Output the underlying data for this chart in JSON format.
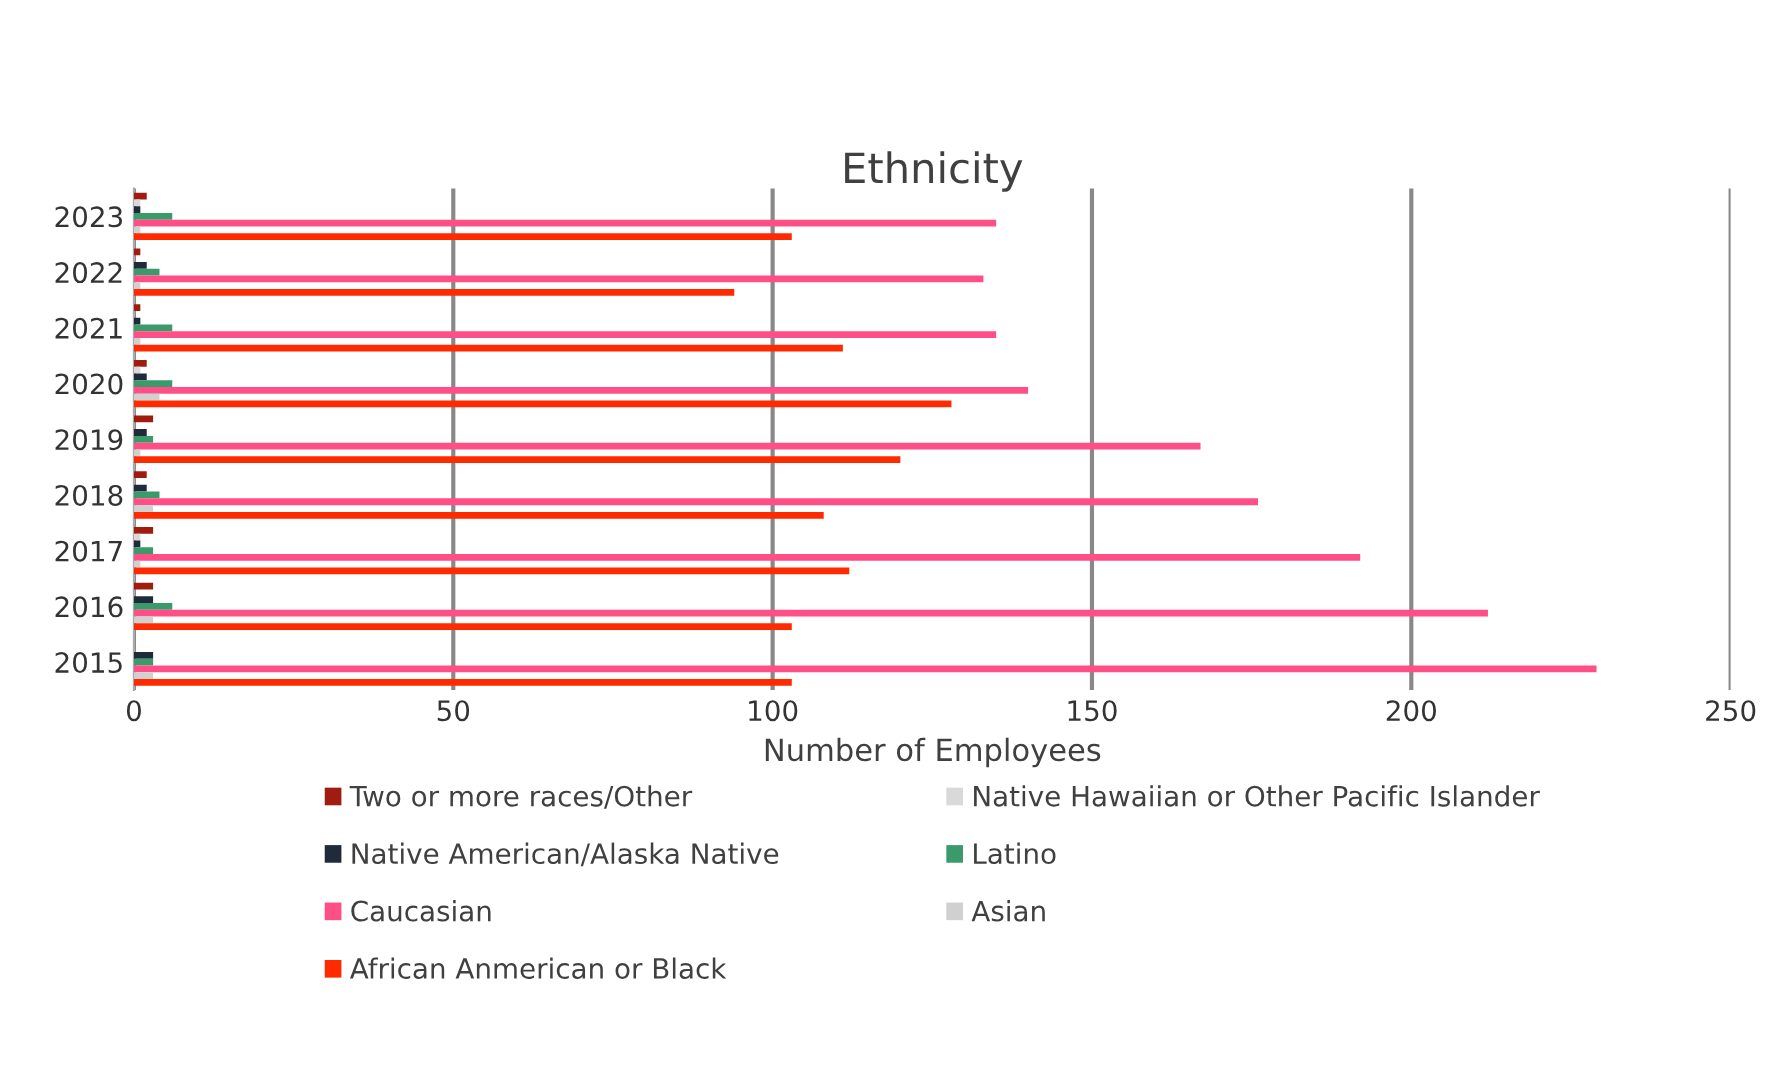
{
  "chart_data": {
    "type": "bar",
    "orientation": "horizontal",
    "title": "Ethnicity",
    "xlabel": "Number of Employees",
    "categories": [
      "2023",
      "2022",
      "2021",
      "2020",
      "2019",
      "2018",
      "2017",
      "2016",
      "2015"
    ],
    "series": [
      {
        "name": "Two or more races/Other",
        "color": "#a01c10",
        "values": [
          2,
          1,
          1,
          2,
          3,
          2,
          3,
          3,
          0
        ]
      },
      {
        "name": "Native Hawaiian or Other Pacific Islander",
        "color": "#d9d9d9",
        "values": [
          1,
          0,
          0,
          1,
          0,
          0,
          1,
          0,
          0
        ]
      },
      {
        "name": "Native American/Alaska Native",
        "color": "#1f2a3a",
        "values": [
          1,
          2,
          1,
          2,
          2,
          2,
          1,
          3,
          3
        ]
      },
      {
        "name": "Latino",
        "color": "#3a9a6a",
        "values": [
          6,
          4,
          6,
          6,
          3,
          4,
          3,
          6,
          3
        ]
      },
      {
        "name": "Caucasian",
        "color": "#ff4f86",
        "values": [
          135,
          133,
          135,
          140,
          167,
          176,
          192,
          212,
          229
        ]
      },
      {
        "name": "Asian",
        "color": "#d0d0d0",
        "values": [
          1,
          1,
          1,
          4,
          1,
          3,
          1,
          3,
          3
        ]
      },
      {
        "name": "African Anmerican or Black",
        "color": "#ff2a00",
        "values": [
          103,
          94,
          111,
          128,
          120,
          108,
          112,
          103,
          103
        ]
      }
    ],
    "xlim": [
      0,
      250
    ],
    "xticks": [
      0,
      50,
      100,
      150,
      200,
      250
    ],
    "grid": "x",
    "legend": "bottom"
  }
}
